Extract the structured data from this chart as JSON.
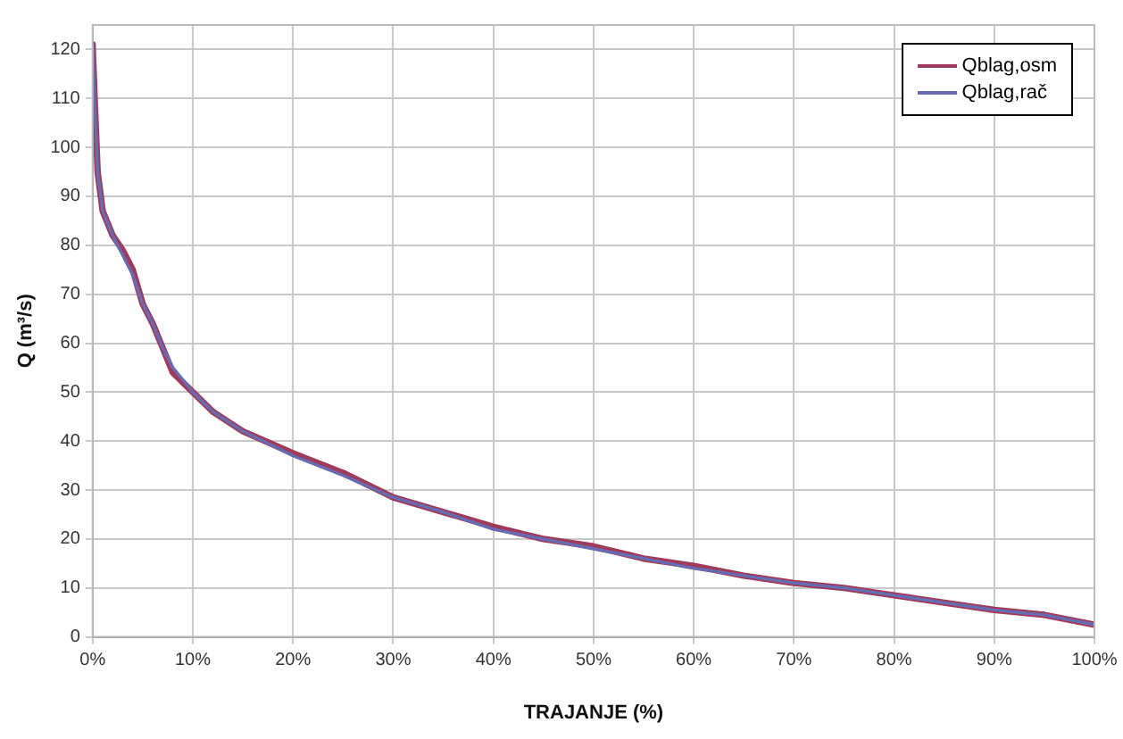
{
  "chart_data": {
    "type": "line",
    "xlabel": "TRAJANJE (%)",
    "ylabel": "Q (m³/s)",
    "xlim": [
      0,
      100
    ],
    "xticks": [
      {
        "value": 0,
        "label": "0%"
      },
      {
        "value": 10,
        "label": "10%"
      },
      {
        "value": 20,
        "label": "20%"
      },
      {
        "value": 30,
        "label": "30%"
      },
      {
        "value": 40,
        "label": "40%"
      },
      {
        "value": 50,
        "label": "50%"
      },
      {
        "value": 60,
        "label": "60%"
      },
      {
        "value": 70,
        "label": "70%"
      },
      {
        "value": 80,
        "label": "80%"
      },
      {
        "value": 90,
        "label": "90%"
      },
      {
        "value": 100,
        "label": "100%"
      }
    ],
    "ylim": [
      0,
      125
    ],
    "yticks": [
      0,
      10,
      20,
      30,
      40,
      50,
      60,
      70,
      80,
      90,
      100,
      110,
      120
    ],
    "x": [
      0,
      0.2,
      0.5,
      1,
      2,
      3,
      4,
      5,
      6,
      7,
      8,
      10,
      12,
      15,
      20,
      25,
      30,
      35,
      40,
      45,
      50,
      55,
      60,
      65,
      70,
      75,
      80,
      85,
      90,
      95,
      100
    ],
    "series": [
      {
        "name": "Qblag,osm",
        "color": "#a03a5a",
        "values": [
          121,
          110,
          95,
          87,
          82,
          79,
          75,
          68,
          64,
          59,
          54,
          50,
          46,
          42,
          37.5,
          33.5,
          28.5,
          25.5,
          22.5,
          20,
          18.5,
          16,
          14.5,
          12.5,
          11,
          10,
          8.5,
          7,
          5.5,
          4.5,
          2.5
        ]
      },
      {
        "name": "Qblag,rač",
        "color": "#6a6aae",
        "values": [
          121,
          110,
          95,
          87,
          82,
          78,
          74,
          68,
          64,
          59,
          55,
          50,
          46,
          42,
          37,
          33,
          28.5,
          25.5,
          22,
          20,
          18,
          16,
          14,
          12.5,
          11,
          10,
          8.5,
          7,
          5.5,
          4.5,
          2.5
        ]
      }
    ],
    "grid": true,
    "legend": "top right",
    "marker": "none",
    "line_style": "solid"
  }
}
